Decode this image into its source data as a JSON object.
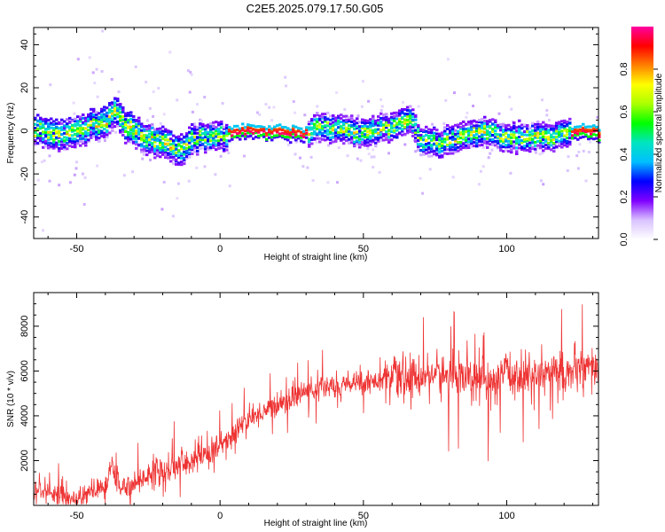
{
  "title": "C2E5.2025.079.17.50.G05",
  "chart_data": [
    {
      "type": "heatmap",
      "title": "C2E5.2025.079.17.50.G05",
      "xlabel": "Height of straight line (km)",
      "ylabel": "Frequency (Hz)",
      "xlim": [
        -65,
        132
      ],
      "ylim": [
        -50,
        48
      ],
      "xticks": [
        -50,
        0,
        50,
        100
      ],
      "yticks": [
        -40,
        -20,
        0,
        20,
        40
      ],
      "colorbar": {
        "label": "Normalized spectral amplitude",
        "range": [
          0,
          1
        ],
        "ticks": [
          0.0,
          0.2,
          0.4,
          0.6,
          0.8
        ],
        "colormap": [
          "#ffffff",
          "#d9c2ff",
          "#7f00ff",
          "#0000ff",
          "#00bfff",
          "#00e5c0",
          "#00ff00",
          "#aaff00",
          "#ffff00",
          "#ff8000",
          "#ff0000",
          "#ff00a0"
        ]
      },
      "ridge_frequency": {
        "x": [
          -65,
          -55,
          -45,
          -40,
          -37,
          -34,
          -30,
          -25,
          -20,
          -15,
          -10,
          -5,
          0,
          5,
          10,
          20,
          31,
          33,
          40,
          50,
          60,
          65,
          67,
          70,
          75,
          80,
          85,
          90,
          95,
          100,
          105,
          110,
          115,
          120,
          125,
          132
        ],
        "y": [
          1,
          -1,
          3,
          5,
          10,
          4,
          0,
          -3,
          -4,
          -9,
          -3,
          -2,
          -2,
          0,
          0,
          0,
          0,
          4,
          1,
          0,
          3,
          5,
          4,
          -5,
          -5,
          -4,
          -1,
          0,
          0,
          -2,
          -3,
          -2,
          -2,
          0,
          0,
          0
        ]
      }
    },
    {
      "type": "line",
      "xlabel": "Height of straight line (km)",
      "ylabel": "SNR (10 * v/v)",
      "xlim": [
        -65,
        132
      ],
      "ylim": [
        0,
        9500
      ],
      "xticks": [
        -50,
        0,
        50,
        100
      ],
      "yticks": [
        2000,
        4000,
        6000,
        8000
      ],
      "color": "#ee3333",
      "series": [
        {
          "x": [
            -65,
            -60,
            -55,
            -50,
            -45,
            -40,
            -38,
            -35,
            -30,
            -26,
            -22,
            -20,
            -15,
            -10,
            -5,
            0,
            5,
            7,
            10,
            15,
            20,
            25,
            30,
            35,
            40,
            45,
            50,
            55,
            60,
            65,
            70,
            75,
            80,
            85,
            90,
            95,
            100,
            105,
            110,
            115,
            120,
            125,
            132
          ],
          "y": [
            600,
            700,
            400,
            300,
            600,
            800,
            1700,
            800,
            1000,
            1200,
            1800,
            1500,
            1700,
            2000,
            2300,
            2700,
            3200,
            3600,
            3800,
            4200,
            4500,
            4800,
            5100,
            5200,
            5400,
            5400,
            5500,
            5600,
            5700,
            5600,
            5800,
            5900,
            5700,
            5800,
            5600,
            5500,
            5900,
            5800,
            5700,
            6000,
            5900,
            6000,
            6100
          ]
        }
      ]
    }
  ]
}
